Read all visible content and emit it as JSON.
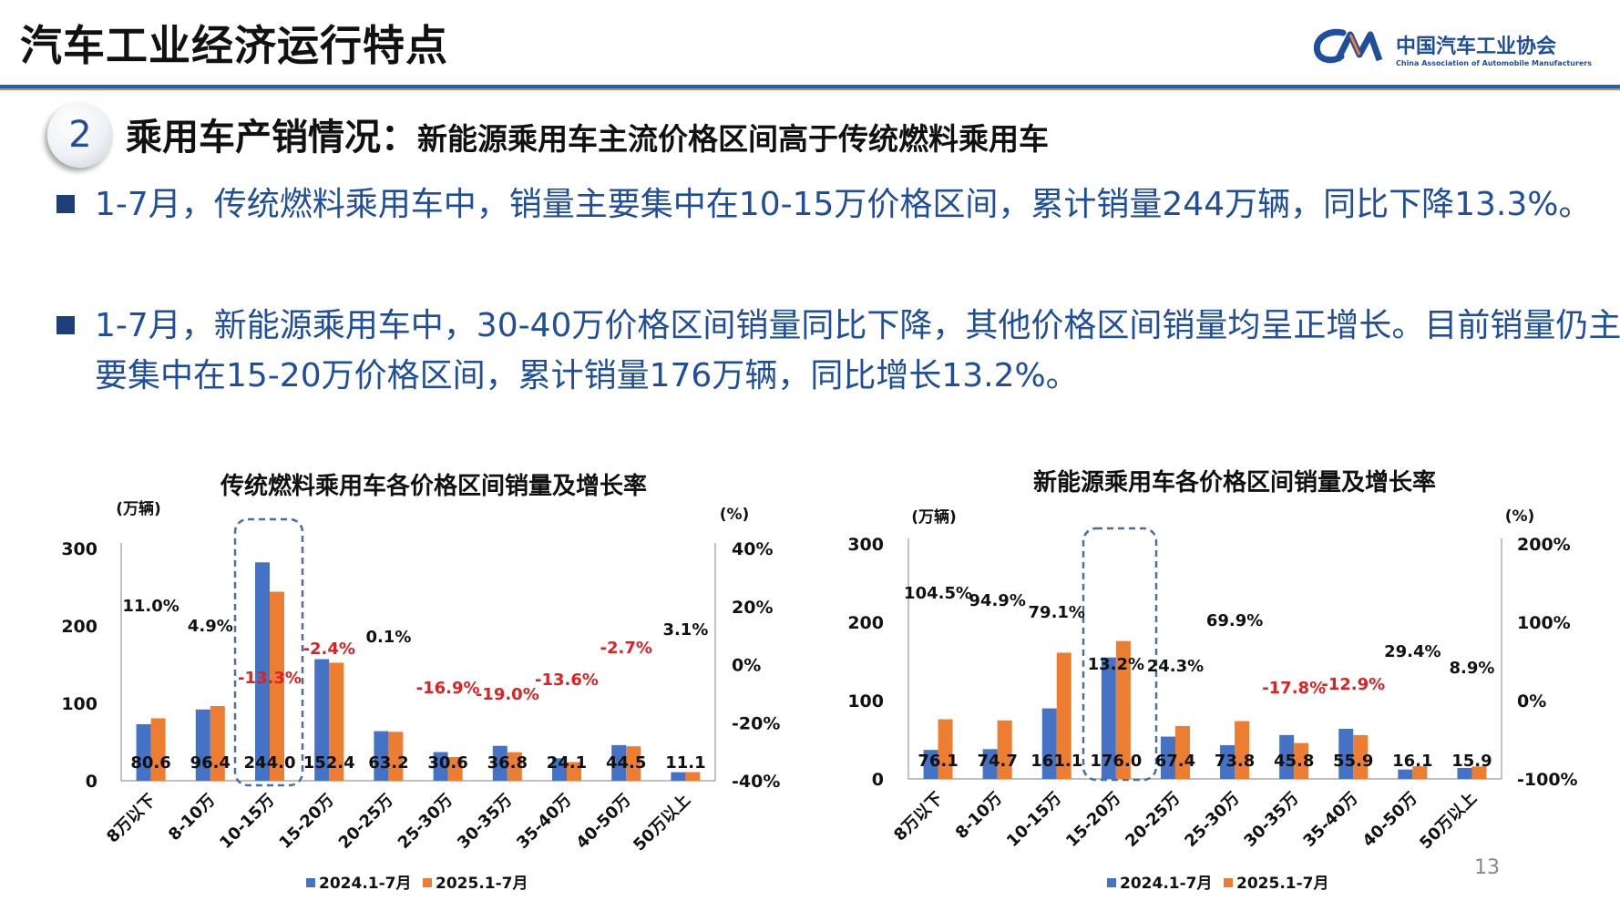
{
  "header": {
    "title": "汽车工业经济运行特点",
    "logo_cn": "中国汽车工业协会",
    "logo_en": "China Association of Automobile Manufacturers"
  },
  "section": {
    "number": "2",
    "heading_main": "乘用车产销情况：",
    "heading_sub": "新能源乘用车主流价格区间高于传统燃料乘用车"
  },
  "bullets": [
    "1-7月，传统燃料乘用车中，销量主要集中在10-15万价格区间，累计销量244万辆，同比下降13.3%。",
    "1-7月，新能源乘用车中，30-40万价格区间销量同比下降，其他价格区间销量均呈正增长。目前销量仍主要集中在15-20万价格区间，累计销量176万辆，同比增长13.2%。"
  ],
  "page_number": "13",
  "colors": {
    "series_2024": "#4472c4",
    "series_2025": "#ed7d31",
    "negative_growth": "#e02020",
    "highlight_box": "#4a6fa5",
    "text_blue": "#1f4e9c"
  },
  "chart_data": [
    {
      "type": "bar",
      "title": "传统燃料乘用车各价格区间销量及增长率",
      "ylabel": "(万辆)",
      "y2label": "(%)",
      "categories": [
        "8万以下",
        "8-10万",
        "10-15万",
        "15-20万",
        "20-25万",
        "25-30万",
        "30-35万",
        "35-40万",
        "40-50万",
        "50万以上"
      ],
      "ylim": [
        0,
        300
      ],
      "yticks": [
        "0",
        "100",
        "200",
        "300"
      ],
      "y2lim": [
        -40,
        40
      ],
      "y2ticks": [
        "-40%",
        "-20%",
        "0%",
        "20%",
        "40%"
      ],
      "series": [
        {
          "name": "2024.1-7月",
          "values": [
            73,
            92,
            282,
            157,
            64,
            37,
            45,
            29,
            46,
            11
          ]
        },
        {
          "name": "2025.1-7月",
          "values": [
            80.6,
            96.4,
            244.0,
            152.4,
            63.2,
            30.6,
            36.8,
            24.1,
            44.5,
            11.1
          ]
        }
      ],
      "value_labels": [
        "80.6",
        "96.4",
        "244.0",
        "152.4",
        "63.2",
        "30.6",
        "36.8",
        "24.1",
        "44.5",
        "11.1"
      ],
      "growth": [
        11.0,
        4.9,
        -13.3,
        -2.4,
        0.1,
        -16.9,
        -19.0,
        -13.6,
        -2.7,
        3.1
      ],
      "growth_labels": [
        "11.0%",
        "4.9%",
        "-13.3%",
        "-2.4%",
        "0.1%",
        "-16.9%",
        "-19.0%",
        "-13.6%",
        "-2.7%",
        "3.1%"
      ],
      "highlight_category": 2,
      "legend_position": "bottom"
    },
    {
      "type": "bar",
      "title": "新能源乘用车各价格区间销量及增长率",
      "ylabel": "(万辆)",
      "y2label": "(%)",
      "categories": [
        "8万以下",
        "8-10万",
        "10-15万",
        "15-20万",
        "20-25万",
        "25-30万",
        "30-35万",
        "35-40万",
        "40-50万",
        "50万以上"
      ],
      "ylim": [
        0,
        300
      ],
      "yticks": [
        "0",
        "100",
        "200",
        "300"
      ],
      "y2lim": [
        -100,
        200
      ],
      "y2ticks": [
        "-100%",
        "0%",
        "100%",
        "200%"
      ],
      "series": [
        {
          "name": "2024.1-7月",
          "values": [
            37,
            38,
            90,
            155,
            54,
            43,
            56,
            64,
            12,
            14
          ]
        },
        {
          "name": "2025.1-7月",
          "values": [
            76.1,
            74.7,
            161.1,
            176.0,
            67.4,
            73.8,
            45.8,
            55.9,
            16.1,
            15.9
          ]
        }
      ],
      "value_labels": [
        "76.1",
        "74.7",
        "161.1",
        "176.0",
        "67.4",
        "73.8",
        "45.8",
        "55.9",
        "16.1",
        "15.9"
      ],
      "growth": [
        104.5,
        94.9,
        79.1,
        13.2,
        24.3,
        69.9,
        -17.8,
        -12.9,
        29.4,
        8.9
      ],
      "growth_labels": [
        "104.5%",
        "94.9%",
        "79.1%",
        "13.2%",
        "24.3%",
        "69.9%",
        "-17.8%",
        "-12.9%",
        "29.4%",
        "8.9%"
      ],
      "highlight_category": 3,
      "legend_position": "bottom"
    }
  ]
}
